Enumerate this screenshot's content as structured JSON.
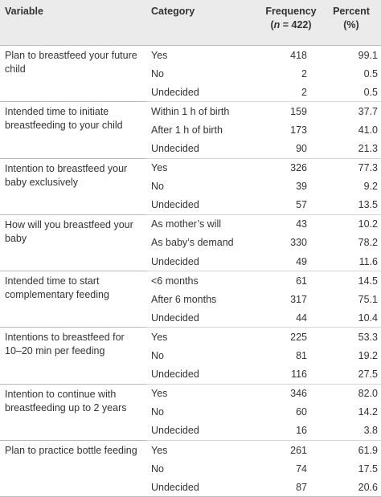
{
  "table": {
    "header": {
      "variable": "Variable",
      "category": "Category",
      "frequency": "Frequency",
      "n_open": "(",
      "n_var": "n",
      "n_rest": " = 422)",
      "percent": "Percent",
      "percent_unit": "(%)"
    },
    "groups": [
      {
        "variable": "Plan to breastfeed your future child",
        "rows": [
          [
            "Yes",
            "418",
            "99.1"
          ],
          [
            "No",
            "2",
            "0.5"
          ],
          [
            "Undecided",
            "2",
            "0.5"
          ]
        ]
      },
      {
        "variable": "Intended time to initiate breastfeeding to your child",
        "rows": [
          [
            "Within 1 h of birth",
            "159",
            "37.7"
          ],
          [
            "After 1 h of birth",
            "173",
            "41.0"
          ],
          [
            "Undecided",
            "90",
            "21.3"
          ]
        ]
      },
      {
        "variable": "Intention to breastfeed your baby exclusively",
        "rows": [
          [
            "Yes",
            "326",
            "77.3"
          ],
          [
            "No",
            "39",
            "9.2"
          ],
          [
            "Undecided",
            "57",
            "13.5"
          ]
        ]
      },
      {
        "variable": "How will you breastfeed your baby",
        "rows": [
          [
            "As mother’s will",
            "43",
            "10.2"
          ],
          [
            "As baby’s demand",
            "330",
            "78.2"
          ],
          [
            "Undecided",
            "49",
            "11.6"
          ]
        ]
      },
      {
        "variable": "Intended time to start complementary feeding",
        "rows": [
          [
            "<6 months",
            "61",
            "14.5"
          ],
          [
            "After 6 months",
            "317",
            "75.1"
          ],
          [
            "Undecided",
            "44",
            "10.4"
          ]
        ]
      },
      {
        "variable": "Intentions to breastfeed for 10–20 min per feeding",
        "rows": [
          [
            "Yes",
            "225",
            "53.3"
          ],
          [
            "No",
            "81",
            "19.2"
          ],
          [
            "Undecided",
            "116",
            "27.5"
          ]
        ]
      },
      {
        "variable": "Intention to continue with breastfeeding up to 2 years",
        "rows": [
          [
            "Yes",
            "346",
            "82.0"
          ],
          [
            "No",
            "60",
            "14.2"
          ],
          [
            "Undecided",
            "16",
            "3.8"
          ]
        ]
      },
      {
        "variable": "Plan to practice bottle feeding",
        "rows": [
          [
            "Yes",
            "261",
            "61.9"
          ],
          [
            "No",
            "74",
            "17.5"
          ],
          [
            "Undecided",
            "87",
            "20.6"
          ]
        ]
      }
    ]
  }
}
